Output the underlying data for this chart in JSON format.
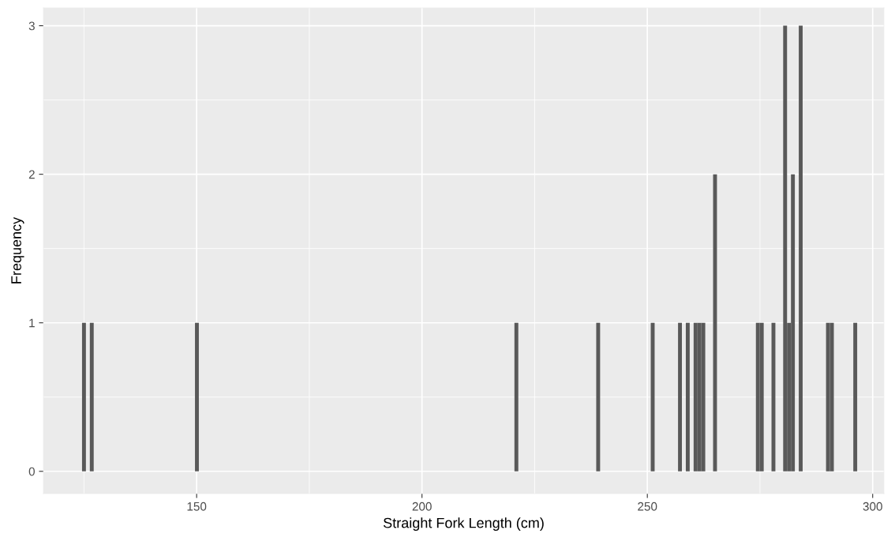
{
  "chart_data": {
    "type": "histogram",
    "xlabel": "Straight Fork Length (cm)",
    "ylabel": "Frequency",
    "bins": [
      124.57,
      125.43,
      126.3,
      127.16,
      149.63,
      150.49,
      220.51,
      221.37,
      238.66,
      239.52,
      250.76,
      251.62,
      256.81,
      257.67,
      258.54,
      259.4,
      260.27,
      261.13,
      261.99,
      262.85,
      264.59,
      265.45,
      274.09,
      274.95,
      275.82,
      277.55,
      278.41,
      280.14,
      281.0,
      281.87,
      282.73,
      283.6,
      284.46,
      289.65,
      290.51,
      291.38,
      295.7,
      296.56
    ],
    "values": [
      1,
      0,
      1,
      0,
      1,
      0,
      1,
      0,
      1,
      0,
      1,
      0,
      1,
      0,
      1,
      0,
      1,
      1,
      1,
      0,
      2,
      0,
      1,
      1,
      0,
      1,
      0,
      3,
      1,
      2,
      0,
      3,
      0,
      1,
      1,
      0,
      1
    ],
    "color": "#595959",
    "xlim": [
      116,
      302.5
    ],
    "ylim": [
      -0.15,
      3.12
    ],
    "xticks": [
      150,
      200,
      250,
      300
    ],
    "yticks": [
      0,
      1,
      2,
      3
    ],
    "grid": true
  }
}
